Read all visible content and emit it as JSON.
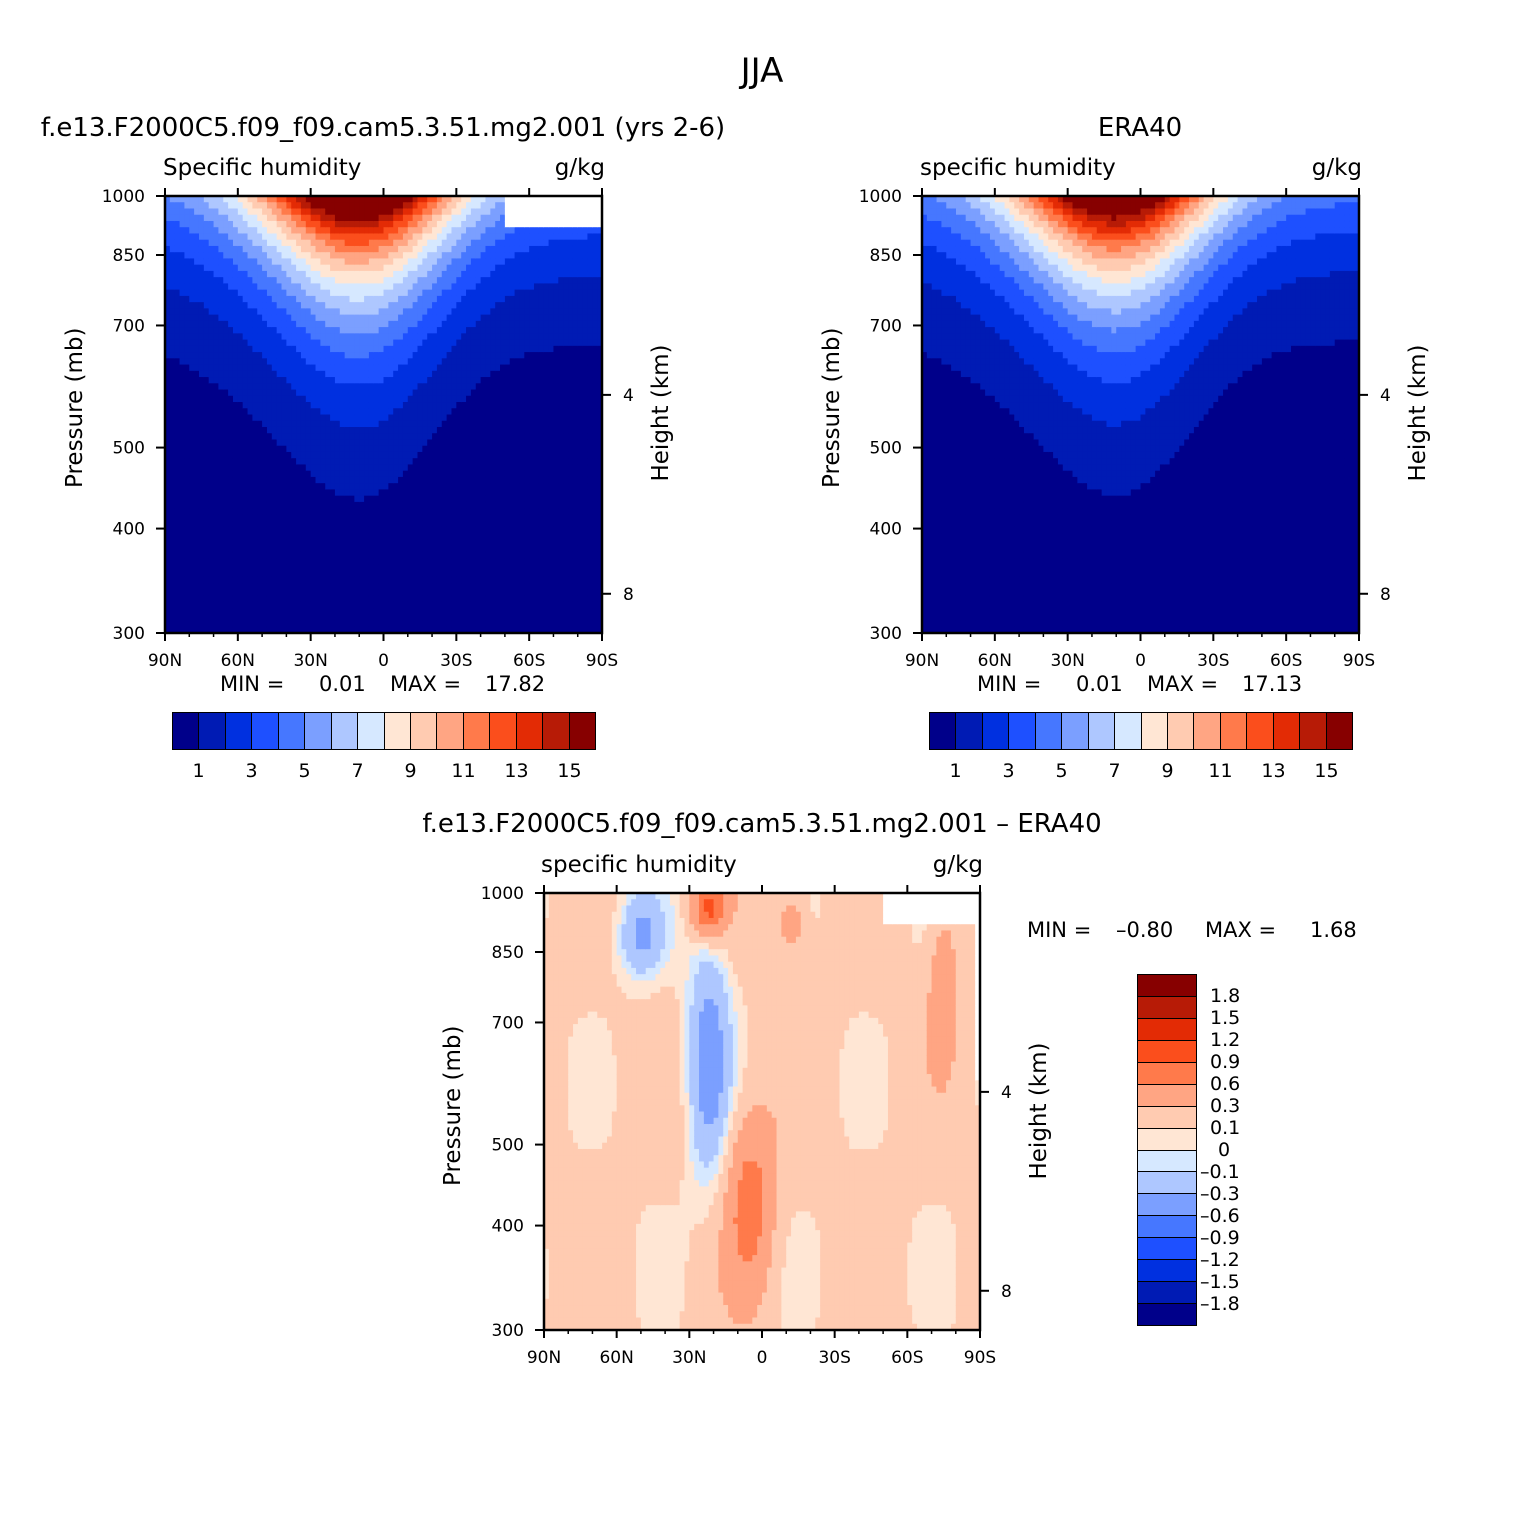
{
  "figure": {
    "title": "JJA"
  },
  "chart_data": [
    {
      "id": "model",
      "type": "heatmap",
      "panel_title": "f.e13.F2000C5.f09_f09.cam5.3.51.mg2.001 (yrs 2-6)",
      "variable_label": "Specific humidity",
      "units": "g/kg",
      "xlabel": "",
      "ylabel": "Pressure (mb)",
      "right_ylabel": "Height (km)",
      "x_ticks": [
        "90N",
        "60N",
        "30N",
        "0",
        "30S",
        "60S",
        "90S"
      ],
      "x_values": [
        90,
        60,
        30,
        0,
        -30,
        -60,
        -90
      ],
      "y_ticks": [
        300,
        400,
        500,
        700,
        850,
        1000
      ],
      "right_y_ticks": [
        8,
        4
      ],
      "xlim": [
        90,
        -90
      ],
      "ylim": [
        1000,
        300
      ],
      "min_label": "MIN =",
      "min_value": "0.01",
      "max_label": "MAX =",
      "max_value": "17.82",
      "min": 0.01,
      "max": 17.82,
      "peak_latitude": 8,
      "colorbar_labels": [
        "1",
        "3",
        "5",
        "7",
        "9",
        "11",
        "13",
        "15"
      ]
    },
    {
      "id": "obs",
      "type": "heatmap",
      "panel_title": "ERA40",
      "variable_label": "specific humidity",
      "units": "g/kg",
      "xlabel": "",
      "ylabel": "Pressure (mb)",
      "right_ylabel": "Height (km)",
      "x_ticks": [
        "90N",
        "60N",
        "30N",
        "0",
        "30S",
        "60S",
        "90S"
      ],
      "x_values": [
        90,
        60,
        30,
        0,
        -30,
        -60,
        -90
      ],
      "y_ticks": [
        300,
        400,
        500,
        700,
        850,
        1000
      ],
      "right_y_ticks": [
        8,
        4
      ],
      "xlim": [
        90,
        -90
      ],
      "ylim": [
        1000,
        300
      ],
      "min_label": "MIN =",
      "min_value": "0.01",
      "max_label": "MAX =",
      "max_value": "17.13",
      "min": 0.01,
      "max": 17.13,
      "peak_latitude": 8,
      "colorbar_labels": [
        "1",
        "3",
        "5",
        "7",
        "9",
        "11",
        "13",
        "15"
      ]
    },
    {
      "id": "diff",
      "type": "heatmap",
      "panel_title": "f.e13.F2000C5.f09_f09.cam5.3.51.mg2.001 – ERA40",
      "variable_label": "specific humidity",
      "units": "g/kg",
      "xlabel": "",
      "ylabel": "Pressure (mb)",
      "right_ylabel": "Height (km)",
      "x_ticks": [
        "90N",
        "60N",
        "30N",
        "0",
        "30S",
        "60S",
        "90S"
      ],
      "x_values": [
        90,
        60,
        30,
        0,
        -30,
        -60,
        -90
      ],
      "y_ticks": [
        300,
        400,
        500,
        700,
        850,
        1000
      ],
      "right_y_ticks": [
        8,
        4
      ],
      "xlim": [
        90,
        -90
      ],
      "ylim": [
        1000,
        300
      ],
      "min_label": "MIN =",
      "min_value": "–0.80",
      "max_label": "MAX =",
      "max_value": "1.68",
      "min": -0.8,
      "max": 1.68,
      "colorbar_labels": [
        "1.8",
        "1.5",
        "1.2",
        "0.9",
        "0.6",
        "0.3",
        "0.1",
        "0",
        "–0.1",
        "–0.3",
        "–0.6",
        "–0.9",
        "–1.2",
        "–1.5",
        "–1.8"
      ]
    }
  ],
  "colors": {
    "sequential": [
      "#00008a",
      "#001bb4",
      "#0030e0",
      "#1e50ff",
      "#4677ff",
      "#7b9fff",
      "#aec7ff",
      "#d6e8ff",
      "#ffe6d4",
      "#ffcbb1",
      "#ffa583",
      "#ff7a4b",
      "#fb4e1c",
      "#e32b05",
      "#b71b06",
      "#870000"
    ],
    "diverging": [
      "#870000",
      "#b71b06",
      "#e32b05",
      "#fb4e1c",
      "#ff7a4b",
      "#ffa583",
      "#ffcbb1",
      "#ffe6d4",
      "#d6e8ff",
      "#aec7ff",
      "#7b9fff",
      "#4677ff",
      "#1e50ff",
      "#0030e0",
      "#001bb4",
      "#00008a"
    ]
  }
}
